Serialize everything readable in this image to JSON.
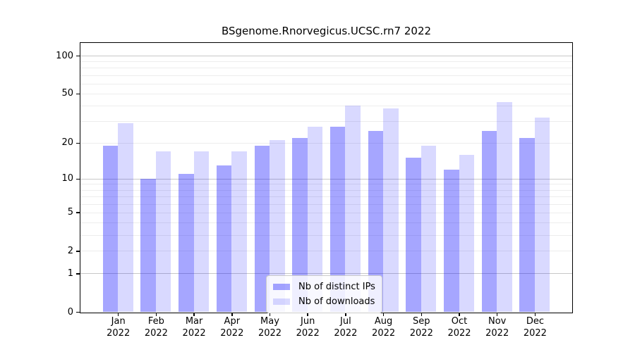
{
  "title": "BSgenome.Rnorvegicus.UCSC.rn7 2022",
  "chart_data": {
    "type": "bar",
    "title": "BSgenome.Rnorvegicus.UCSC.rn7 2022",
    "categories": [
      "Jan",
      "Feb",
      "Mar",
      "Apr",
      "May",
      "Jun",
      "Jul",
      "Aug",
      "Sep",
      "Oct",
      "Nov",
      "Dec"
    ],
    "category_year": "2022",
    "series": [
      {
        "name": "Nb of distinct IPs",
        "color": "#0000ff",
        "alpha": 0.35,
        "values": [
          19,
          10,
          11,
          13,
          19,
          22,
          27,
          25,
          15,
          12,
          25,
          22
        ]
      },
      {
        "name": "Nb of downloads",
        "color": "#0000ff",
        "alpha": 0.15,
        "values": [
          29,
          17,
          17,
          17,
          21,
          27,
          40,
          38,
          19,
          16,
          43,
          32
        ]
      }
    ],
    "yscale": "log1p",
    "yticks": [
      0,
      1,
      2,
      5,
      10,
      20,
      50,
      100
    ],
    "ylim": [
      0,
      126
    ],
    "xlabel": "",
    "ylabel": "",
    "grid": {
      "orientation": "horizontal",
      "major": [
        1,
        10,
        100
      ],
      "minor": [
        2,
        3,
        4,
        5,
        6,
        7,
        8,
        9,
        20,
        30,
        40,
        50,
        60,
        70,
        80,
        90
      ],
      "major_color": "#c8c8c8",
      "minor_color": "#ededed"
    },
    "spine_color": "#000000",
    "background_color": "#ffffff",
    "legend_position": "lower center"
  }
}
